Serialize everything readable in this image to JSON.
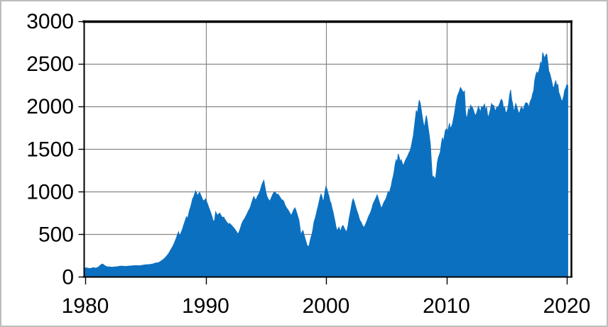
{
  "chart_data": {
    "type": "area",
    "title": "",
    "legend": "none",
    "x_start_year": 1980,
    "points_per_year": 12,
    "x_range": [
      1980,
      2020.4
    ],
    "y_range": [
      0,
      3000
    ],
    "x_ticks": [
      1980,
      1990,
      2000,
      2010,
      2020
    ],
    "y_ticks": [
      0,
      500,
      1000,
      1500,
      2000,
      2500,
      3000
    ],
    "x_gridline_years": [
      1990,
      2000,
      2010,
      2020
    ],
    "grid": {
      "horizontal": true,
      "vertical": true
    },
    "colors": {
      "area_fill": "#0C70C0",
      "gridline": "#878787",
      "axis": "#000000",
      "tick_label": "#000000",
      "figure_border": "#BDBDBD"
    },
    "values": [
      100,
      104,
      101,
      98,
      97,
      96,
      98,
      102,
      106,
      103,
      100,
      102,
      105,
      112,
      122,
      133,
      142,
      148,
      143,
      133,
      125,
      120,
      116,
      113,
      115,
      113,
      111,
      110,
      112,
      114,
      113,
      115,
      117,
      119,
      121,
      123,
      124,
      123,
      122,
      121,
      120,
      121,
      122,
      123,
      124,
      125,
      126,
      127,
      128,
      129,
      130,
      130,
      129,
      128,
      128,
      129,
      131,
      133,
      135,
      137,
      138,
      139,
      140,
      141,
      142,
      144,
      146,
      148,
      151,
      155,
      158,
      162,
      160,
      165,
      171,
      178,
      186,
      195,
      204,
      214,
      226,
      240,
      254,
      268,
      290,
      310,
      330,
      350,
      375,
      400,
      430,
      460,
      495,
      525,
      480,
      500,
      530,
      560,
      600,
      635,
      670,
      704,
      676,
      730,
      780,
      815,
      860,
      912,
      935,
      968,
      1005,
      980,
      946,
      973,
      988,
      962,
      935,
      905,
      885,
      900,
      912,
      880,
      850,
      815,
      785,
      750,
      715,
      676,
      640,
      665,
      760,
      735,
      718,
      735,
      746,
      725,
      705,
      690,
      700,
      676,
      658,
      640,
      628,
      615,
      625,
      612,
      600,
      585,
      572,
      558,
      540,
      523,
      501,
      515,
      545,
      580,
      620,
      648,
      665,
      685,
      705,
      730,
      755,
      778,
      800,
      830,
      870,
      905,
      940,
      915,
      895,
      925,
      950,
      968,
      995,
      1035,
      1075,
      1105,
      1129,
      1060,
      995,
      945,
      920,
      900,
      885,
      912,
      940,
      968,
      985,
      996,
      978,
      962,
      968,
      952,
      935,
      915,
      900,
      898,
      878,
      843,
      822,
      800,
      787,
      765,
      746,
      718,
      733,
      762,
      790,
      807,
      778,
      740,
      700,
      662,
      579,
      482,
      523,
      540,
      495,
      452,
      412,
      371,
      352,
      360,
      410,
      462,
      496,
      560,
      640,
      676,
      720,
      773,
      820,
      870,
      927,
      968,
      940,
      871,
      920,
      1000,
      1059,
      1025,
      980,
      940,
      885,
      860,
      801,
      760,
      700,
      645,
      579,
      540,
      560,
      580,
      537,
      552,
      590,
      600,
      572,
      551,
      523,
      545,
      600,
      680,
      740,
      800,
      870,
      912,
      885,
      840,
      800,
      762,
      731,
      685,
      652,
      640,
      606,
      590,
      579,
      602,
      632,
      660,
      692,
      720,
      742,
      772,
      812,
      856,
      880,
      905,
      930,
      960,
      920,
      880,
      843,
      801,
      822,
      850,
      878,
      898,
      920,
      960,
      1000,
      980,
      1023,
      1065,
      1130,
      1176,
      1240,
      1320,
      1371,
      1340,
      1440,
      1400,
      1345,
      1371,
      1330,
      1301,
      1330,
      1360,
      1385,
      1405,
      1432,
      1460,
      1480,
      1530,
      1593,
      1650,
      1750,
      1850,
      1950,
      1905,
      2000,
      2071,
      2030,
      1950,
      1871,
      1800,
      1750,
      1820,
      1890,
      1820,
      1732,
      1650,
      1552,
      1350,
      1148,
      1180,
      1162,
      1140,
      1230,
      1340,
      1400,
      1430,
      1468,
      1560,
      1630,
      1580,
      1650,
      1718,
      1732,
      1700,
      1740,
      1801,
      1732,
      1760,
      1790,
      1850,
      1912,
      1990,
      2065,
      2121,
      2150,
      2180,
      2218,
      2200,
      2176,
      2162,
      2176,
      1940,
      1857,
      1885,
      1968,
      1940,
      2010,
      1995,
      1982,
      1950,
      1912,
      1890,
      1912,
      1954,
      1996,
      1960,
      1930,
      1996,
      1982,
      2000,
      2023,
      1940,
      1990,
      1898,
      1870,
      1920,
      1968,
      2030,
      2010,
      2010,
      1968,
      1940,
      1982,
      1990,
      2000,
      2023,
      2065,
      2080,
      2050,
      1960,
      1996,
      1920,
      1930,
      1960,
      2030,
      2130,
      2190,
      2080,
      2030,
      1954,
      1960,
      2030,
      2000,
      1960,
      1920,
      1926,
      1970,
      1990,
      1960,
      1970,
      2010,
      2040,
      2037,
      2030,
      1980,
      2030,
      2070,
      2090,
      2148,
      2180,
      2300,
      2357,
      2400,
      2380,
      2410,
      2454,
      2520,
      2480,
      2630,
      2590,
      2560,
      2600,
      2610,
      2520,
      2412,
      2385,
      2340,
      2287,
      2232,
      2210,
      2260,
      2301,
      2230,
      2260,
      2162,
      2130,
      2093,
      2052,
      2079,
      2120,
      2190,
      2210,
      2252,
      2245
    ]
  }
}
